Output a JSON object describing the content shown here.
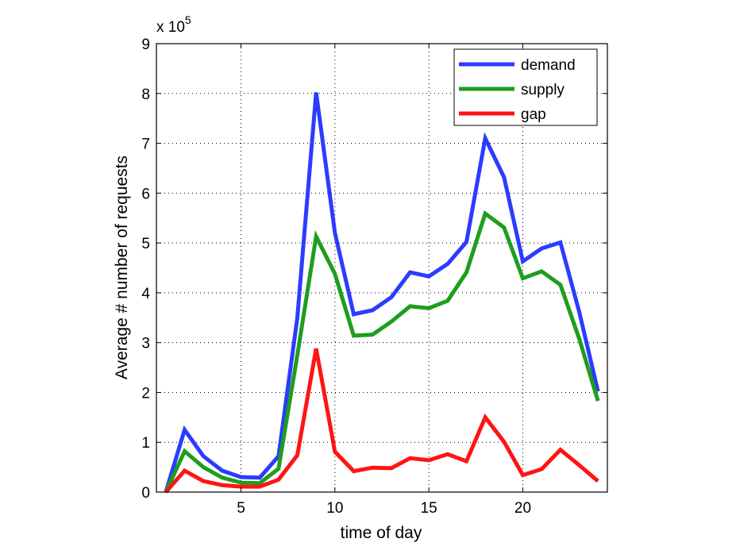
{
  "chart_data": {
    "type": "line",
    "title": "",
    "xlabel": "time of day",
    "ylabel": "Average # number of requests",
    "y_multiplier_text": "x 10",
    "y_multiplier_exponent": "5",
    "xlim": [
      0.5,
      24.5
    ],
    "ylim": [
      0,
      9
    ],
    "xticks": [
      5,
      10,
      15,
      20
    ],
    "yticks": [
      0,
      1,
      2,
      3,
      4,
      5,
      6,
      7,
      8,
      9
    ],
    "grid": true,
    "legend_position": "top-right",
    "x": [
      1,
      2,
      3,
      4,
      5,
      6,
      7,
      8,
      9,
      10,
      11,
      12,
      13,
      14,
      15,
      16,
      17,
      18,
      19,
      20,
      21,
      22,
      23,
      24
    ],
    "series": [
      {
        "name": "demand",
        "color": "#2b3cff",
        "values": [
          0.0,
          1.25,
          0.72,
          0.43,
          0.3,
          0.29,
          0.72,
          3.5,
          8.02,
          5.2,
          3.57,
          3.65,
          3.91,
          4.41,
          4.33,
          4.58,
          5.02,
          7.1,
          6.32,
          4.63,
          4.89,
          5.01,
          3.62,
          2.02
        ]
      },
      {
        "name": "supply",
        "color": "#1e9e1e",
        "values": [
          0.0,
          0.82,
          0.5,
          0.29,
          0.19,
          0.18,
          0.47,
          2.75,
          5.13,
          4.38,
          3.14,
          3.16,
          3.42,
          3.73,
          3.69,
          3.84,
          4.41,
          5.59,
          5.31,
          4.29,
          4.43,
          4.16,
          3.08,
          1.83
        ]
      },
      {
        "name": "gap",
        "color": "#ff1414",
        "values": [
          0.0,
          0.43,
          0.22,
          0.14,
          0.11,
          0.11,
          0.25,
          0.74,
          2.88,
          0.81,
          0.42,
          0.49,
          0.48,
          0.68,
          0.64,
          0.76,
          0.62,
          1.5,
          1.01,
          0.34,
          0.46,
          0.85,
          0.54,
          0.22
        ]
      }
    ]
  }
}
